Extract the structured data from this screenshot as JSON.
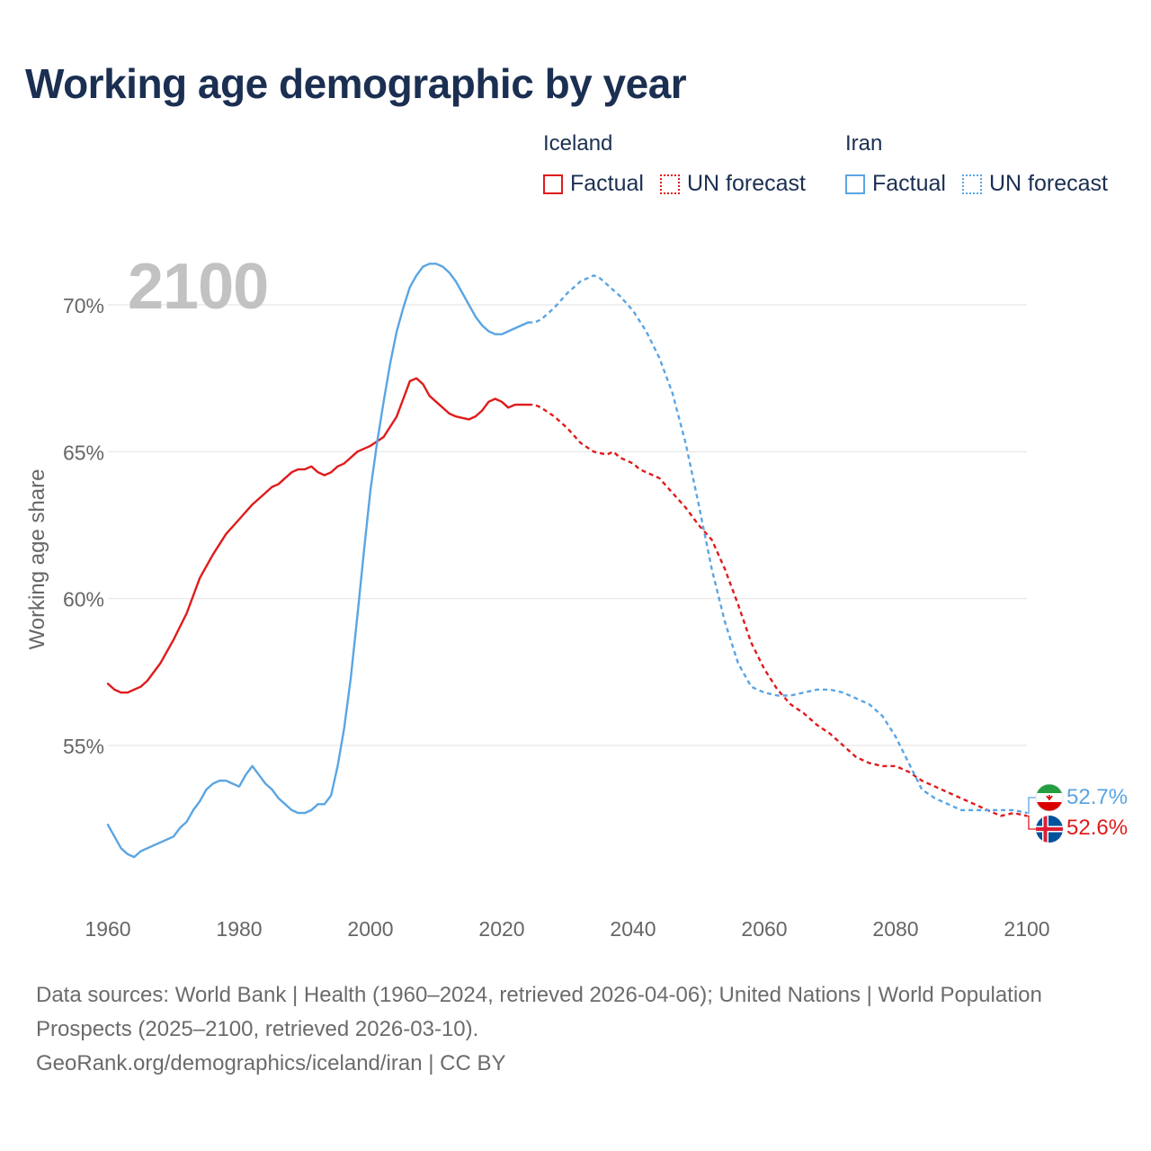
{
  "title": "Working age demographic by year",
  "legend": {
    "iceland": {
      "name": "Iceland",
      "factual": "Factual",
      "forecast": "UN forecast"
    },
    "iran": {
      "name": "Iran",
      "factual": "Factual",
      "forecast": "UN forecast"
    }
  },
  "colors": {
    "iceland": "#e01b1b",
    "iran": "#5aa5e3",
    "grid": "#e6e6e6",
    "axis_text": "#666666"
  },
  "year_watermark": "2100",
  "end_labels": {
    "iran": "52.7%",
    "iceland": "52.6%"
  },
  "footer": {
    "sources": "Data sources: World Bank | Health (1960–2024, retrieved 2026-04-06); United Nations | World Population Prospects (2025–2100, retrieved 2026-03-10).",
    "link": "GeoRank.org/demographics/iceland/iran | CC BY"
  },
  "chart_data": {
    "type": "line",
    "title": "Working age demographic by year",
    "xlabel": "",
    "ylabel": "Working age share",
    "xlim": [
      1960,
      2100
    ],
    "ylim": [
      50.5,
      72.5
    ],
    "x_ticks": [
      1960,
      1980,
      2000,
      2020,
      2040,
      2060,
      2080,
      2100
    ],
    "x_tick_labels": [
      "1960",
      "1980",
      "2000",
      "2020",
      "2040",
      "2060",
      "2080",
      "2100"
    ],
    "y_ticks": [
      55,
      60,
      65,
      70
    ],
    "y_tick_labels": [
      "55%",
      "60%",
      "65%",
      "70%"
    ],
    "grid": true,
    "factual_range": [
      1960,
      2024
    ],
    "forecast_range": [
      2025,
      2100
    ],
    "series": [
      {
        "name": "Iceland",
        "x": [
          1960,
          1961,
          1962,
          1963,
          1964,
          1965,
          1966,
          1968,
          1970,
          1972,
          1974,
          1976,
          1978,
          1980,
          1982,
          1983,
          1984,
          1985,
          1986,
          1987,
          1988,
          1989,
          1990,
          1991,
          1992,
          1993,
          1994,
          1995,
          1996,
          1997,
          1998,
          2000,
          2002,
          2004,
          2005,
          2006,
          2007,
          2008,
          2009,
          2010,
          2012,
          2013,
          2015,
          2016,
          2017,
          2018,
          2019,
          2020,
          2021,
          2022,
          2023,
          2024,
          2025,
          2026,
          2028,
          2030,
          2032,
          2034,
          2036,
          2037,
          2038,
          2040,
          2041,
          2042,
          2044,
          2046,
          2048,
          2050,
          2052,
          2054,
          2056,
          2058,
          2060,
          2062,
          2064,
          2066,
          2068,
          2070,
          2072,
          2074,
          2076,
          2078,
          2080,
          2082,
          2084,
          2086,
          2088,
          2090,
          2092,
          2094,
          2096,
          2098,
          2100
        ],
        "values": [
          57.1,
          56.9,
          56.8,
          56.8,
          56.9,
          57.0,
          57.2,
          57.8,
          58.6,
          59.5,
          60.7,
          61.5,
          62.2,
          62.7,
          63.2,
          63.4,
          63.6,
          63.8,
          63.9,
          64.1,
          64.3,
          64.4,
          64.4,
          64.5,
          64.3,
          64.2,
          64.3,
          64.5,
          64.6,
          64.8,
          65.0,
          65.2,
          65.5,
          66.2,
          66.8,
          67.4,
          67.5,
          67.3,
          66.9,
          66.7,
          66.3,
          66.2,
          66.1,
          66.2,
          66.4,
          66.7,
          66.8,
          66.7,
          66.5,
          66.6,
          66.6,
          66.6,
          66.6,
          66.5,
          66.2,
          65.8,
          65.3,
          65.0,
          64.9,
          65.0,
          64.8,
          64.6,
          64.4,
          64.3,
          64.1,
          63.6,
          63.1,
          62.5,
          62.0,
          61.0,
          59.8,
          58.5,
          57.6,
          56.9,
          56.4,
          56.1,
          55.7,
          55.4,
          55.0,
          54.6,
          54.4,
          54.3,
          54.3,
          54.1,
          53.8,
          53.6,
          53.4,
          53.2,
          53.0,
          52.8,
          52.6,
          52.7,
          52.6
        ]
      },
      {
        "name": "Iran",
        "x": [
          1960,
          1961,
          1962,
          1963,
          1964,
          1965,
          1966,
          1968,
          1970,
          1971,
          1972,
          1973,
          1974,
          1975,
          1976,
          1977,
          1978,
          1979,
          1980,
          1981,
          1982,
          1983,
          1984,
          1985,
          1986,
          1987,
          1988,
          1989,
          1990,
          1991,
          1992,
          1993,
          1994,
          1995,
          1996,
          1997,
          1998,
          1999,
          2000,
          2001,
          2002,
          2003,
          2004,
          2005,
          2006,
          2007,
          2008,
          2009,
          2010,
          2011,
          2012,
          2013,
          2014,
          2015,
          2016,
          2017,
          2018,
          2019,
          2020,
          2021,
          2022,
          2023,
          2024,
          2025,
          2026,
          2027,
          2028,
          2030,
          2032,
          2034,
          2035,
          2036,
          2038,
          2040,
          2042,
          2044,
          2046,
          2048,
          2050,
          2052,
          2054,
          2056,
          2058,
          2060,
          2062,
          2064,
          2066,
          2068,
          2070,
          2072,
          2074,
          2076,
          2078,
          2080,
          2082,
          2084,
          2086,
          2088,
          2090,
          2092,
          2094,
          2096,
          2098,
          2100
        ],
        "values": [
          52.3,
          51.9,
          51.5,
          51.3,
          51.2,
          51.4,
          51.5,
          51.7,
          51.9,
          52.2,
          52.4,
          52.8,
          53.1,
          53.5,
          53.7,
          53.8,
          53.8,
          53.7,
          53.6,
          54.0,
          54.3,
          54.0,
          53.7,
          53.5,
          53.2,
          53.0,
          52.8,
          52.7,
          52.7,
          52.8,
          53.0,
          53.0,
          53.3,
          54.3,
          55.6,
          57.3,
          59.4,
          61.6,
          63.7,
          65.3,
          66.7,
          68.0,
          69.1,
          69.9,
          70.6,
          71.0,
          71.3,
          71.4,
          71.4,
          71.3,
          71.1,
          70.8,
          70.4,
          70.0,
          69.6,
          69.3,
          69.1,
          69.0,
          69.0,
          69.1,
          69.2,
          69.3,
          69.4,
          69.4,
          69.5,
          69.7,
          69.9,
          70.4,
          70.8,
          71.0,
          70.9,
          70.7,
          70.3,
          69.8,
          69.1,
          68.2,
          67.0,
          65.3,
          63.2,
          61.0,
          59.2,
          57.8,
          57.0,
          56.8,
          56.7,
          56.7,
          56.8,
          56.9,
          56.9,
          56.8,
          56.6,
          56.4,
          56.0,
          55.3,
          54.4,
          53.5,
          53.2,
          53.0,
          52.8,
          52.8,
          52.8,
          52.8,
          52.8,
          52.7
        ]
      }
    ]
  }
}
